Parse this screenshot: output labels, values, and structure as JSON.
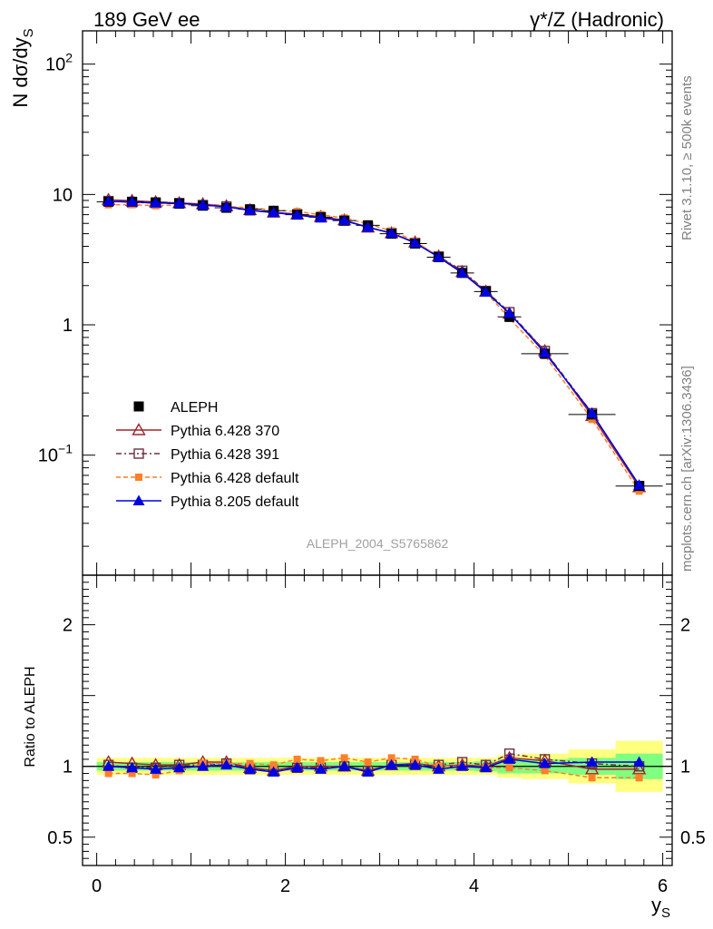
{
  "header": {
    "left": "189 GeV ee",
    "right": "γ*/Z (Hadronic)"
  },
  "side_text": {
    "rivet": "Rivet 3.1.10, ≥ 500k events",
    "mcplots": "mcplots.cern.ch [arXiv:1306.3436]"
  },
  "watermark": "ALEPH_2004_S5765862",
  "chart_data": {
    "type": "line",
    "x": [
      0.125,
      0.375,
      0.625,
      0.875,
      1.125,
      1.375,
      1.625,
      1.875,
      2.125,
      2.375,
      2.625,
      2.875,
      3.125,
      3.375,
      3.625,
      3.875,
      4.125,
      4.375,
      4.75,
      5.25,
      5.75
    ],
    "xlabel_main": "y",
    "xlabel_sub": "S",
    "ylabel_main": "N dσ/dy",
    "ylabel_sub": "S",
    "ratio_ylabel": "Ratio to ALEPH",
    "xlim": [
      -0.15,
      6.1
    ],
    "ylim_main": [
      0.012,
      180
    ],
    "ylim_ratio": [
      0.3,
      2.35
    ],
    "x_ticks": [
      "0",
      "2",
      "4",
      "6"
    ],
    "y_ticks_main": [
      {
        "value": 100,
        "base": "10",
        "exp": "2"
      },
      {
        "value": 10,
        "label": "10"
      },
      {
        "value": 1,
        "label": "1"
      },
      {
        "value": 0.1,
        "base": "10",
        "exp": "−1"
      }
    ],
    "y_ticks_ratio": [
      {
        "value": 2,
        "label": "2"
      },
      {
        "value": 1,
        "label": "1"
      },
      {
        "value": 0.5,
        "label": "0.5"
      }
    ],
    "bins": [
      [
        0,
        0.25
      ],
      [
        0.25,
        0.5
      ],
      [
        0.5,
        0.75
      ],
      [
        0.75,
        1.0
      ],
      [
        1.0,
        1.25
      ],
      [
        1.25,
        1.5
      ],
      [
        1.5,
        1.75
      ],
      [
        1.75,
        2.0
      ],
      [
        2.0,
        2.25
      ],
      [
        2.25,
        2.5
      ],
      [
        2.5,
        2.75
      ],
      [
        2.75,
        3.0
      ],
      [
        3.0,
        3.25
      ],
      [
        3.25,
        3.5
      ],
      [
        3.5,
        3.75
      ],
      [
        3.75,
        4.0
      ],
      [
        4.0,
        4.25
      ],
      [
        4.25,
        4.5
      ],
      [
        4.5,
        5.0
      ],
      [
        5.0,
        5.5
      ],
      [
        5.5,
        6.0
      ]
    ],
    "data_values": [
      8.8,
      8.8,
      8.7,
      8.5,
      8.2,
      7.9,
      7.7,
      7.5,
      7.0,
      6.7,
      6.3,
      5.8,
      5.0,
      4.2,
      3.3,
      2.5,
      1.8,
      1.15,
      0.6,
      0.205,
      0.058
    ],
    "band_stat": [
      0.03,
      0.03,
      0.03,
      0.03,
      0.03,
      0.03,
      0.03,
      0.03,
      0.03,
      0.03,
      0.03,
      0.03,
      0.03,
      0.03,
      0.03,
      0.03,
      0.035,
      0.05,
      0.05,
      0.06,
      0.09
    ],
    "band_total": [
      0.06,
      0.06,
      0.06,
      0.06,
      0.06,
      0.06,
      0.06,
      0.06,
      0.06,
      0.06,
      0.06,
      0.06,
      0.06,
      0.06,
      0.06,
      0.06,
      0.06,
      0.08,
      0.09,
      0.12,
      0.18
    ],
    "series": [
      {
        "name": "ALEPH",
        "color": "#000000",
        "marker": "square-filled",
        "dash": "",
        "values": [
          8.8,
          8.8,
          8.7,
          8.5,
          8.2,
          7.9,
          7.7,
          7.5,
          7.0,
          6.7,
          6.3,
          5.8,
          5.0,
          4.2,
          3.3,
          2.5,
          1.8,
          1.15,
          0.6,
          0.205,
          0.058
        ],
        "ratio": [
          1,
          1,
          1,
          1,
          1,
          1,
          1,
          1,
          1,
          1,
          1,
          1,
          1,
          1,
          1,
          1,
          1,
          1,
          1,
          1,
          1
        ]
      },
      {
        "name": "Pythia 6.428 370",
        "color": "#a0242e",
        "marker": "triangle-open",
        "dash": "",
        "values": [
          9.1,
          8.95,
          8.75,
          8.6,
          8.45,
          8.15,
          7.6,
          7.3,
          7.05,
          6.75,
          6.35,
          5.6,
          5.05,
          4.3,
          3.35,
          2.55,
          1.8,
          1.22,
          0.63,
          0.2,
          0.057
        ],
        "ratio": [
          1.03,
          1.02,
          1.01,
          1.01,
          1.03,
          1.03,
          0.99,
          0.97,
          1.0,
          1.0,
          1.0,
          0.97,
          1.01,
          1.02,
          1.0,
          1.01,
          1.0,
          1.06,
          1.04,
          0.98,
          0.98
        ]
      },
      {
        "name": "Pythia 6.428 391",
        "color": "#6e3045",
        "marker": "square-open",
        "dash": "6,3,2,3",
        "values": [
          8.9,
          8.7,
          8.6,
          8.6,
          8.3,
          8.1,
          7.55,
          7.3,
          7.05,
          6.7,
          6.3,
          5.6,
          5.05,
          4.25,
          3.35,
          2.6,
          1.82,
          1.25,
          0.63,
          0.21,
          0.058
        ],
        "ratio": [
          1.01,
          0.99,
          0.99,
          1.01,
          1.01,
          1.02,
          0.98,
          0.97,
          0.99,
          0.99,
          1.0,
          0.97,
          1.01,
          1.01,
          1.01,
          1.03,
          1.01,
          1.09,
          1.05,
          1.02,
          1.0
        ]
      },
      {
        "name": "Pythia 6.428 default",
        "color": "#ff7f2a",
        "marker": "square-filled-small",
        "dash": "5,3",
        "values": [
          8.35,
          8.35,
          8.2,
          8.3,
          8.35,
          8.1,
          7.9,
          7.6,
          7.4,
          7.0,
          6.6,
          5.95,
          5.25,
          4.4,
          3.3,
          2.5,
          1.78,
          1.12,
          0.58,
          0.188,
          0.053
        ],
        "ratio": [
          0.95,
          0.95,
          0.94,
          0.97,
          1.02,
          1.02,
          1.02,
          1.01,
          1.05,
          1.04,
          1.06,
          1.03,
          1.06,
          1.05,
          1.0,
          1.0,
          0.99,
          0.99,
          0.97,
          0.92,
          0.92
        ]
      },
      {
        "name": "Pythia 8.205 default",
        "color": "#0000e0",
        "marker": "triangle-filled",
        "dash": "",
        "values": [
          8.85,
          8.75,
          8.6,
          8.55,
          8.3,
          8.05,
          7.55,
          7.25,
          6.95,
          6.6,
          6.3,
          5.6,
          5.05,
          4.25,
          3.3,
          2.5,
          1.78,
          1.23,
          0.61,
          0.21,
          0.059
        ],
        "ratio": [
          1.0,
          0.99,
          0.98,
          0.99,
          1.0,
          1.01,
          0.98,
          0.96,
          0.99,
          0.98,
          1.0,
          0.96,
          1.01,
          1.01,
          0.98,
          1.0,
          0.99,
          1.05,
          1.02,
          1.03,
          1.03
        ]
      }
    ]
  }
}
